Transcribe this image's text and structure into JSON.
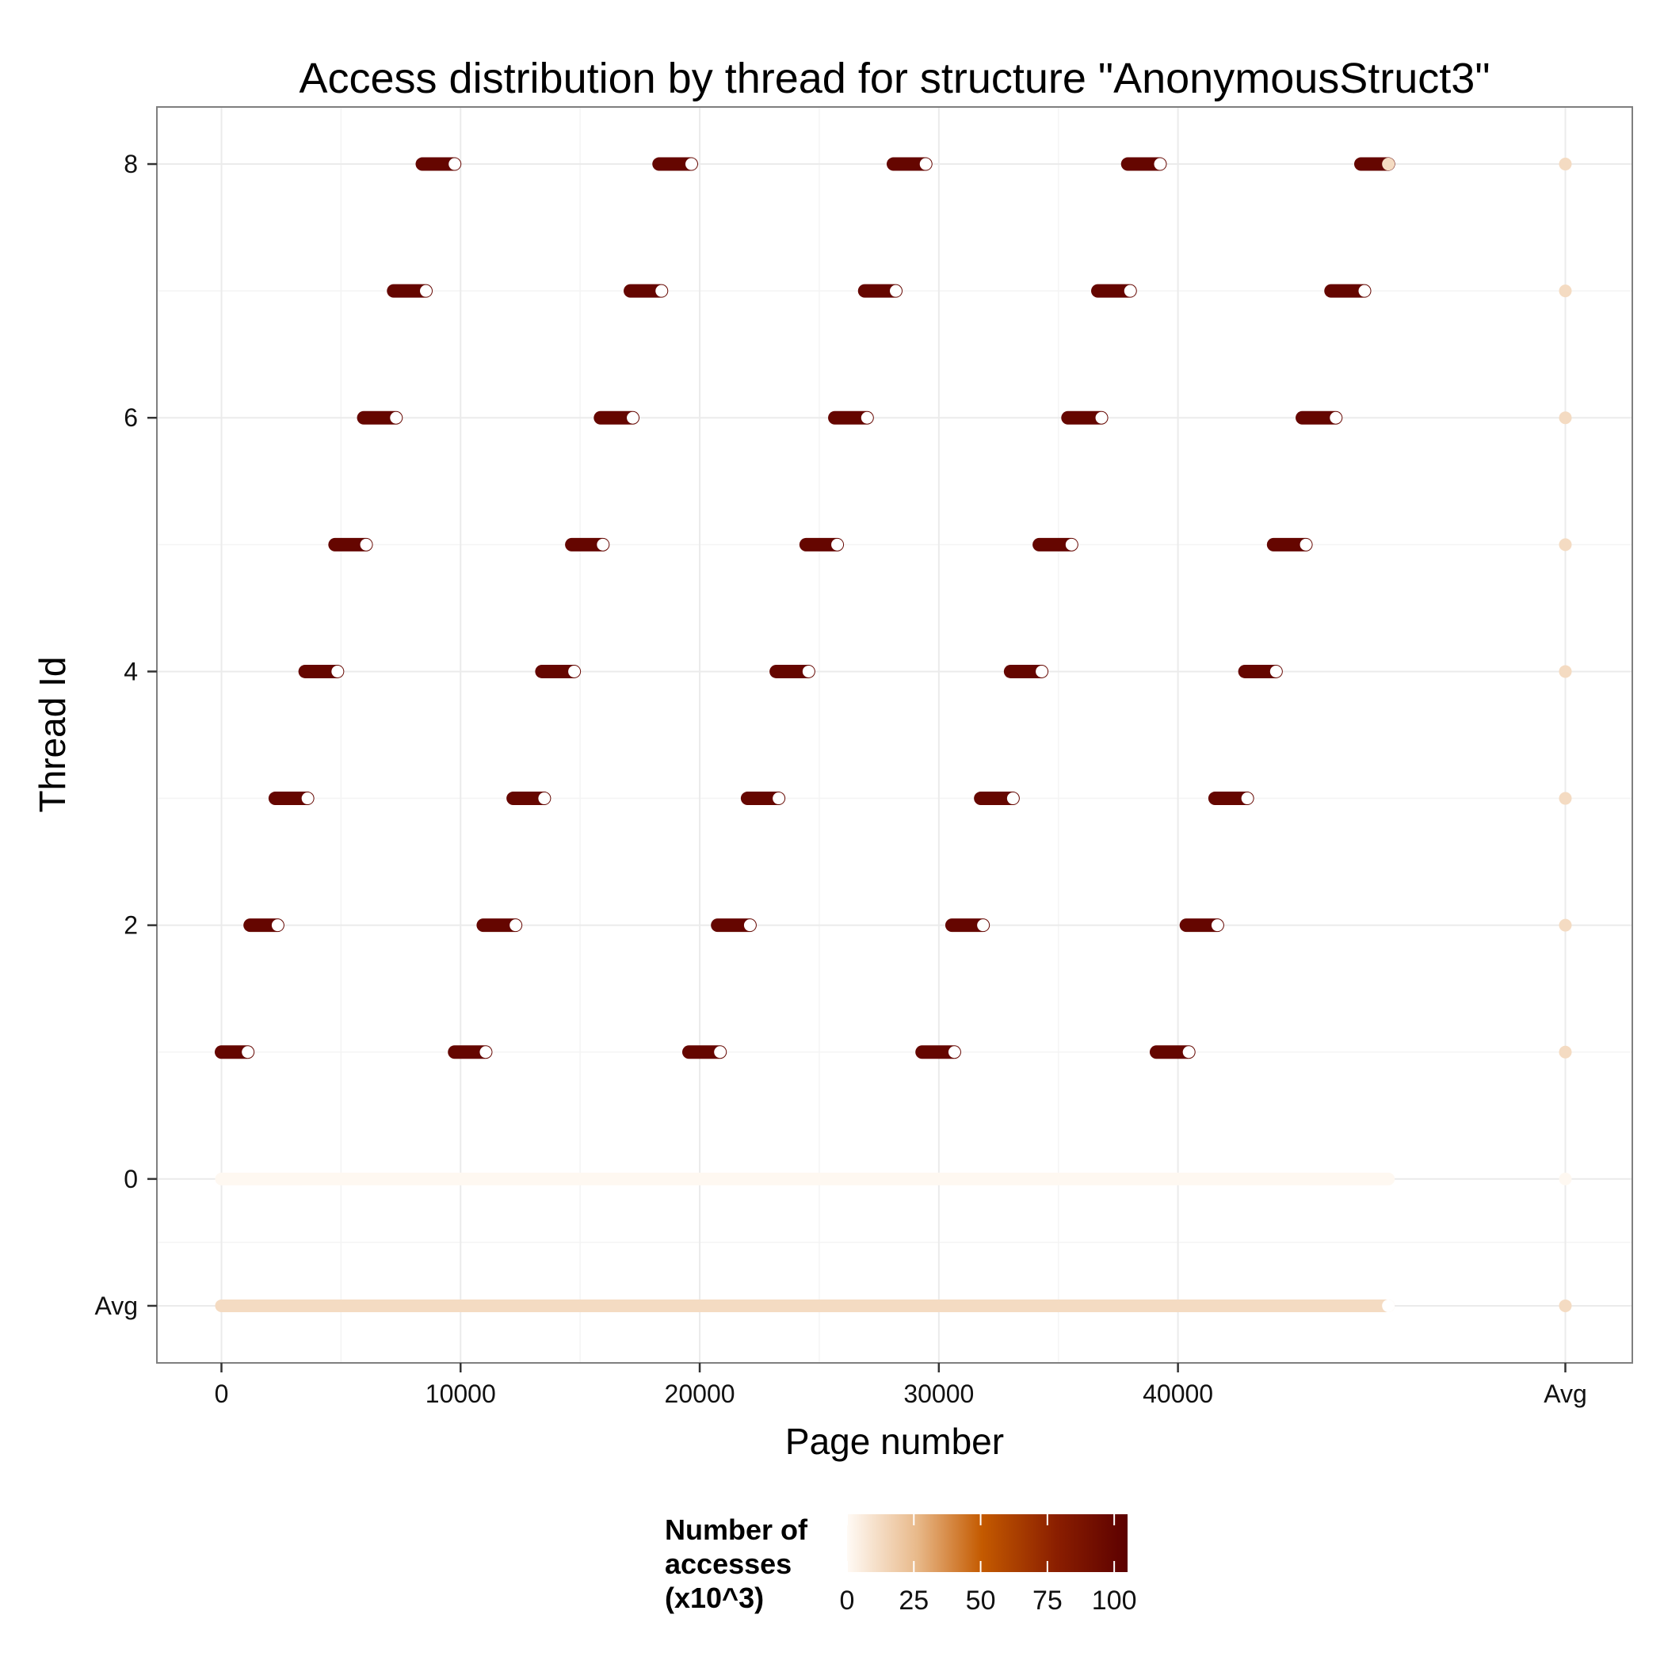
{
  "chart_data": {
    "type": "scatter",
    "title": "Access distribution by thread for structure \"AnonymousStruct3\"",
    "xlabel": "Page number",
    "ylabel": "Thread Id",
    "xlim": [
      -2700,
      59000
    ],
    "ylim": [
      -1.45,
      8.45
    ],
    "x_ticks": [
      {
        "value": 0,
        "label": "0"
      },
      {
        "value": 10000,
        "label": "10000"
      },
      {
        "value": 20000,
        "label": "20000"
      },
      {
        "value": 30000,
        "label": "30000"
      },
      {
        "value": 40000,
        "label": "40000"
      },
      {
        "value": 56200,
        "label": "Avg"
      }
    ],
    "y_ticks": [
      {
        "value": -1,
        "label": "Avg"
      },
      {
        "value": 0,
        "label": "0"
      },
      {
        "value": 2,
        "label": "2"
      },
      {
        "value": 4,
        "label": "4"
      },
      {
        "value": 6,
        "label": "6"
      },
      {
        "value": 8,
        "label": "8"
      }
    ],
    "grid": true,
    "max_page": 48800,
    "avg_column_x": 56200,
    "segments": [
      {
        "thread": 1,
        "start": 0,
        "end": 1100,
        "value": 100
      },
      {
        "thread": 2,
        "start": 1200,
        "end": 2350,
        "value": 100
      },
      {
        "thread": 3,
        "start": 2250,
        "end": 3600,
        "value": 100
      },
      {
        "thread": 4,
        "start": 3500,
        "end": 4850,
        "value": 100
      },
      {
        "thread": 5,
        "start": 4750,
        "end": 6050,
        "value": 100
      },
      {
        "thread": 6,
        "start": 5950,
        "end": 7300,
        "value": 100
      },
      {
        "thread": 7,
        "start": 7200,
        "end": 8550,
        "value": 100
      },
      {
        "thread": 8,
        "start": 8400,
        "end": 9750,
        "value": 100
      },
      {
        "thread": 1,
        "start": 9750,
        "end": 11050,
        "value": 100
      },
      {
        "thread": 2,
        "start": 10950,
        "end": 12300,
        "value": 100
      },
      {
        "thread": 3,
        "start": 12200,
        "end": 13500,
        "value": 100
      },
      {
        "thread": 4,
        "start": 13400,
        "end": 14750,
        "value": 100
      },
      {
        "thread": 5,
        "start": 14650,
        "end": 15950,
        "value": 100
      },
      {
        "thread": 6,
        "start": 15850,
        "end": 17200,
        "value": 100
      },
      {
        "thread": 7,
        "start": 17100,
        "end": 18400,
        "value": 100
      },
      {
        "thread": 8,
        "start": 18300,
        "end": 19650,
        "value": 100
      },
      {
        "thread": 1,
        "start": 19550,
        "end": 20850,
        "value": 100
      },
      {
        "thread": 2,
        "start": 20750,
        "end": 22100,
        "value": 100
      },
      {
        "thread": 3,
        "start": 22000,
        "end": 23300,
        "value": 100
      },
      {
        "thread": 4,
        "start": 23200,
        "end": 24550,
        "value": 100
      },
      {
        "thread": 5,
        "start": 24450,
        "end": 25750,
        "value": 100
      },
      {
        "thread": 6,
        "start": 25650,
        "end": 27000,
        "value": 100
      },
      {
        "thread": 7,
        "start": 26900,
        "end": 28200,
        "value": 100
      },
      {
        "thread": 8,
        "start": 28100,
        "end": 29450,
        "value": 100
      },
      {
        "thread": 1,
        "start": 29300,
        "end": 30650,
        "value": 100
      },
      {
        "thread": 2,
        "start": 30550,
        "end": 31850,
        "value": 100
      },
      {
        "thread": 3,
        "start": 31750,
        "end": 33100,
        "value": 100
      },
      {
        "thread": 4,
        "start": 33000,
        "end": 34300,
        "value": 100
      },
      {
        "thread": 5,
        "start": 34200,
        "end": 35550,
        "value": 100
      },
      {
        "thread": 6,
        "start": 35400,
        "end": 36800,
        "value": 100
      },
      {
        "thread": 7,
        "start": 36650,
        "end": 38000,
        "value": 100
      },
      {
        "thread": 8,
        "start": 37900,
        "end": 39250,
        "value": 100
      },
      {
        "thread": 1,
        "start": 39100,
        "end": 40450,
        "value": 100
      },
      {
        "thread": 2,
        "start": 40350,
        "end": 41650,
        "value": 100
      },
      {
        "thread": 3,
        "start": 41550,
        "end": 42900,
        "value": 100
      },
      {
        "thread": 4,
        "start": 42800,
        "end": 44100,
        "value": 100
      },
      {
        "thread": 5,
        "start": 44000,
        "end": 45350,
        "value": 100
      },
      {
        "thread": 6,
        "start": 45200,
        "end": 46600,
        "value": 100
      },
      {
        "thread": 7,
        "start": 46400,
        "end": 47800,
        "value": 100
      },
      {
        "thread": 8,
        "start": 47650,
        "end": 48800,
        "value": 100
      }
    ],
    "baseline_rows": [
      {
        "thread": 0,
        "start": 0,
        "end": 48800,
        "value": 1
      },
      {
        "thread": -1,
        "start": 0,
        "end": 48800,
        "value": 12.5
      }
    ],
    "avg_column_values": [
      {
        "thread": 8,
        "value": 12.5
      },
      {
        "thread": 7,
        "value": 12.5
      },
      {
        "thread": 6,
        "value": 12.5
      },
      {
        "thread": 5,
        "value": 12.5
      },
      {
        "thread": 4,
        "value": 12.5
      },
      {
        "thread": 3,
        "value": 12.5
      },
      {
        "thread": 2,
        "value": 12.5
      },
      {
        "thread": 1,
        "value": 12.5
      },
      {
        "thread": 0,
        "value": 1
      },
      {
        "thread": -1,
        "value": 12.5
      }
    ],
    "legend": {
      "title_lines": [
        "Number of",
        "accesses",
        "(x10^3)"
      ],
      "position": "bottom",
      "range": [
        0,
        105
      ],
      "ticks": [
        {
          "value": 0,
          "label": "0"
        },
        {
          "value": 25,
          "label": "25"
        },
        {
          "value": 50,
          "label": "50"
        },
        {
          "value": 75,
          "label": "75"
        },
        {
          "value": 100,
          "label": "100"
        }
      ]
    },
    "colors": {
      "low": "#fffaf5",
      "mid": "#c45a00",
      "high": "#5c0000",
      "panel_border": "#7f7f7f",
      "grid": "#ebebeb"
    }
  }
}
